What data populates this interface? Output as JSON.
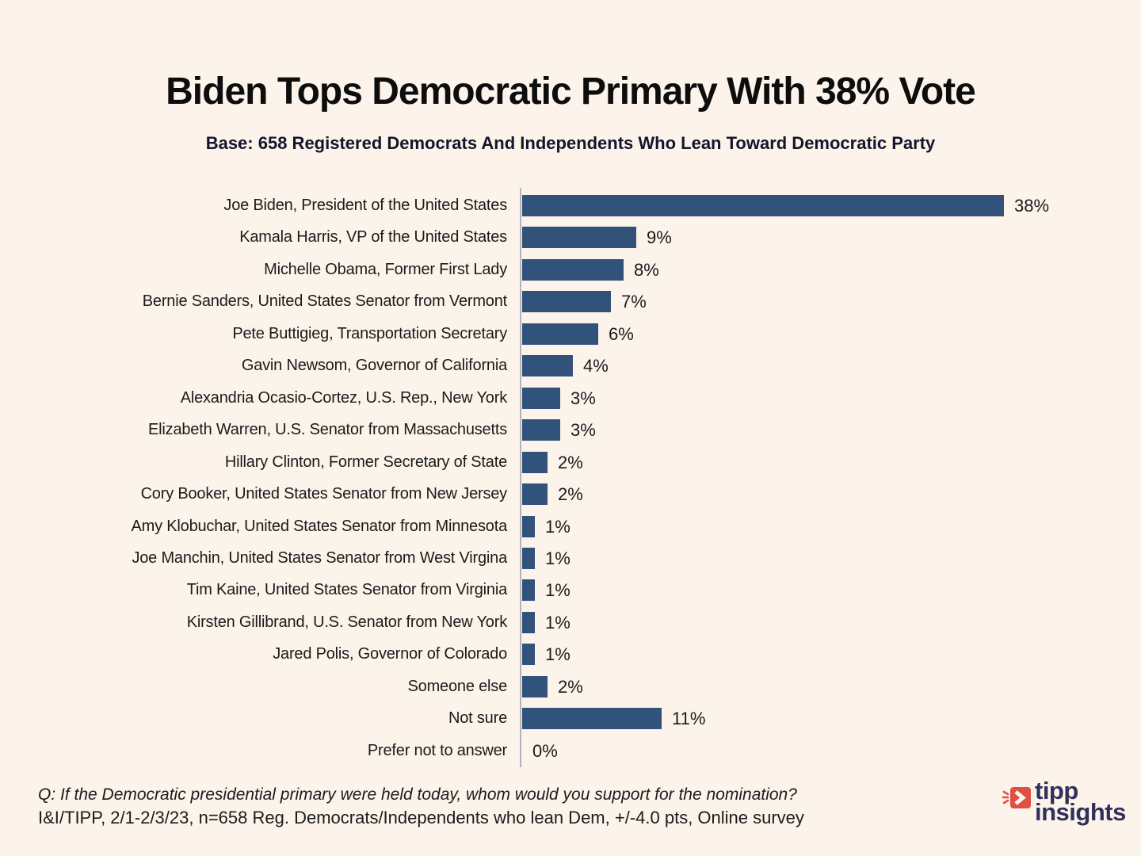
{
  "header": {
    "title": "Biden Tops Democratic Primary With 38% Vote",
    "subtitle": "Base: 658 Registered Democrats And Independents Who Lean Toward Democratic Party"
  },
  "chart_data": {
    "type": "bar",
    "orientation": "horizontal",
    "title": "Biden Tops Democratic Primary With 38% Vote",
    "subtitle": "Base: 658 Registered Democrats And Independents Who Lean Toward Democratic Party",
    "categories": [
      "Joe Biden, President of the United States",
      "Kamala Harris, VP of the United States",
      "Michelle Obama, Former First Lady",
      "Bernie Sanders, United States Senator from Vermont",
      "Pete Buttigieg, Transportation Secretary",
      "Gavin Newsom, Governor of California",
      "Alexandria Ocasio-Cortez, U.S. Rep., New York",
      "Elizabeth Warren, U.S. Senator from Massachusetts",
      "Hillary Clinton, Former Secretary of State",
      "Cory Booker, United States Senator from New Jersey",
      "Amy Klobuchar, United States Senator from Minnesota",
      "Joe Manchin, United States Senator from West Virgina",
      "Tim Kaine, United States Senator from Virginia",
      "Kirsten Gillibrand, U.S. Senator from New York",
      "Jared Polis, Governor of Colorado",
      "Someone else",
      "Not sure",
      "Prefer not to answer"
    ],
    "values": [
      38,
      9,
      8,
      7,
      6,
      4,
      3,
      3,
      2,
      2,
      1,
      1,
      1,
      1,
      1,
      2,
      11,
      0
    ],
    "value_labels": [
      "38%",
      "9%",
      "8%",
      "7%",
      "6%",
      "4%",
      "3%",
      "3%",
      "2%",
      "2%",
      "1%",
      "1%",
      "1%",
      "1%",
      "1%",
      "2%",
      "11%",
      "0%"
    ],
    "xlim": [
      0,
      40
    ],
    "grid": false,
    "legend": "none",
    "bar_color": "#33527A",
    "axis_line_color": "#B3B3BA",
    "category_label_color": "#1B1B1B",
    "value_label_color": "#1B1B1B"
  },
  "footer": {
    "question": "Q:  If the Democratic presidential primary were held today, whom would you support for the nomination?",
    "source": "I&I/TIPP, 2/1-2/3/23, n=658 Reg. Democrats/Independents who lean Dem, +/-4.0 pts, Online survey"
  },
  "logo": {
    "line1": "tipp",
    "line2": "insights",
    "icon": "tipp-arrow-icon",
    "accent_color": "#E05045",
    "text_color": "#32305B"
  },
  "colors": {
    "background": "#FCF3EB"
  }
}
